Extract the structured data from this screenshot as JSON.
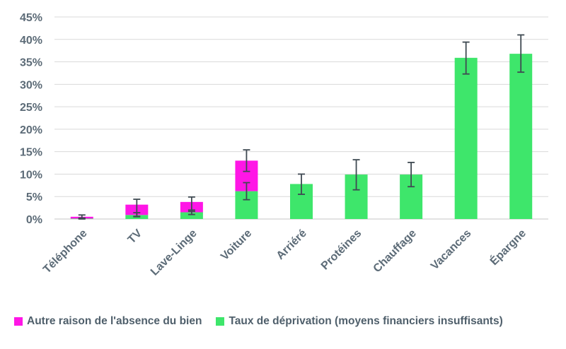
{
  "chart_data": {
    "type": "bar",
    "stacked": true,
    "title": "",
    "xlabel": "",
    "ylabel": "",
    "ylim": [
      0,
      45
    ],
    "ytick_values": [
      0,
      5,
      10,
      15,
      20,
      25,
      30,
      35,
      40,
      45
    ],
    "ytick_labels": [
      "0%",
      "5%",
      "10%",
      "15%",
      "20%",
      "25%",
      "30%",
      "35%",
      "40%",
      "45%"
    ],
    "grid": "horizontal",
    "legend_position": "bottom",
    "categories": [
      "Téléphone",
      "TV",
      "Lave-Linge",
      "Voiture",
      "Arriéré",
      "Protéines",
      "Chauffage",
      "Vacances",
      "Épargne"
    ],
    "series": [
      {
        "name": "Taux de déprivation (moyens financiers insuffisants)",
        "color": "#3ee66b",
        "values": [
          0.1,
          0.9,
          1.5,
          6.2,
          7.8,
          9.9,
          9.9,
          35.9,
          36.8
        ],
        "error_low": [
          0,
          0.5,
          1.0,
          4.3,
          5.5,
          6.5,
          7.2,
          32.3,
          32.7
        ],
        "error_high": [
          0.2,
          1.4,
          2.0,
          8.1,
          10.0,
          13.2,
          12.6,
          39.4,
          41.0
        ]
      },
      {
        "name": "Autre raison de l'absence du bien",
        "color": "#ff16e6",
        "values": [
          0.4,
          2.3,
          2.3,
          6.8,
          0,
          0,
          0,
          0,
          0
        ],
        "error_low": [
          0.2,
          0.6,
          1.7,
          10.6,
          null,
          null,
          null,
          null,
          null
        ],
        "error_high": [
          0.9,
          4.4,
          4.9,
          15.4,
          null,
          null,
          null,
          null,
          null
        ]
      }
    ],
    "legend": [
      {
        "label": "Autre raison de l'absence du bien",
        "color": "#ff16e6"
      },
      {
        "label": "Taux de déprivation (moyens financiers insuffisants)",
        "color": "#3ee66b"
      }
    ]
  }
}
